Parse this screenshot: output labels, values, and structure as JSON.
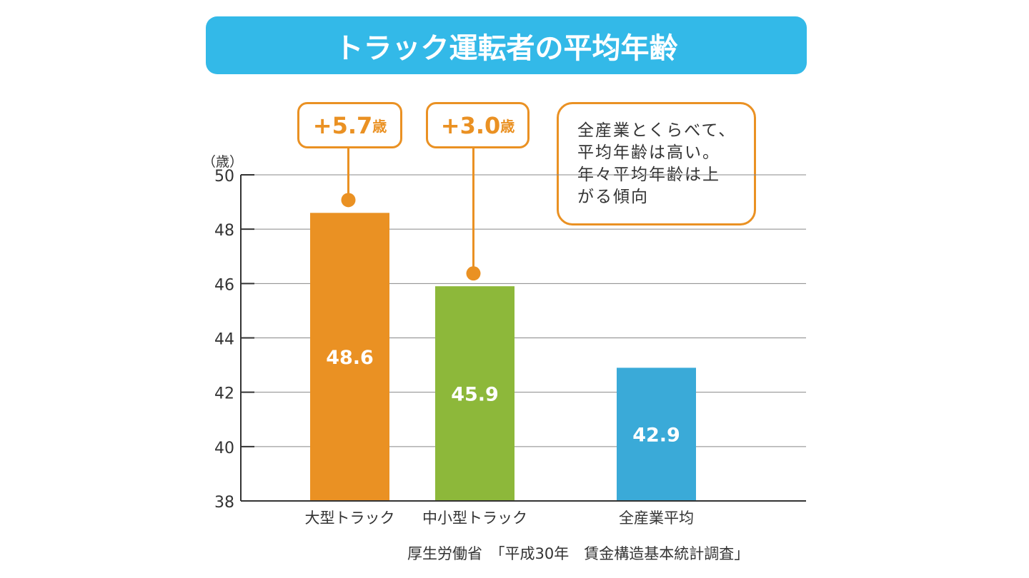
{
  "chart_data": {
    "type": "bar",
    "title": "トラック運転者の平均年齢",
    "ylabel": "（歳）",
    "ylim": [
      38,
      50
    ],
    "yticks": [
      50,
      48,
      46,
      44,
      42,
      40,
      38
    ],
    "grid": true,
    "categories": [
      "大型トラック",
      "中小型トラック",
      "全産業平均"
    ],
    "values": [
      48.6,
      45.9,
      42.9
    ],
    "data_labels": [
      "48.6",
      "45.9",
      "42.9"
    ],
    "colors": [
      "#ea9123",
      "#8db83a",
      "#3aaad8"
    ],
    "annotations": [
      {
        "num": "+5.7",
        "unit": "歳",
        "category": "大型トラック"
      },
      {
        "num": "+3.0",
        "unit": "歳",
        "category": "中小型トラック"
      }
    ],
    "note_lines": [
      "全産業とくらべて、",
      "平均年齢は高い。",
      "年々平均年齢は上",
      "がる傾向"
    ],
    "source": "厚生労働省　「平成30年　賃金構造基本統計調査」"
  },
  "colors": {
    "title_bg": "#33b9e8",
    "accent": "#ea9123"
  }
}
